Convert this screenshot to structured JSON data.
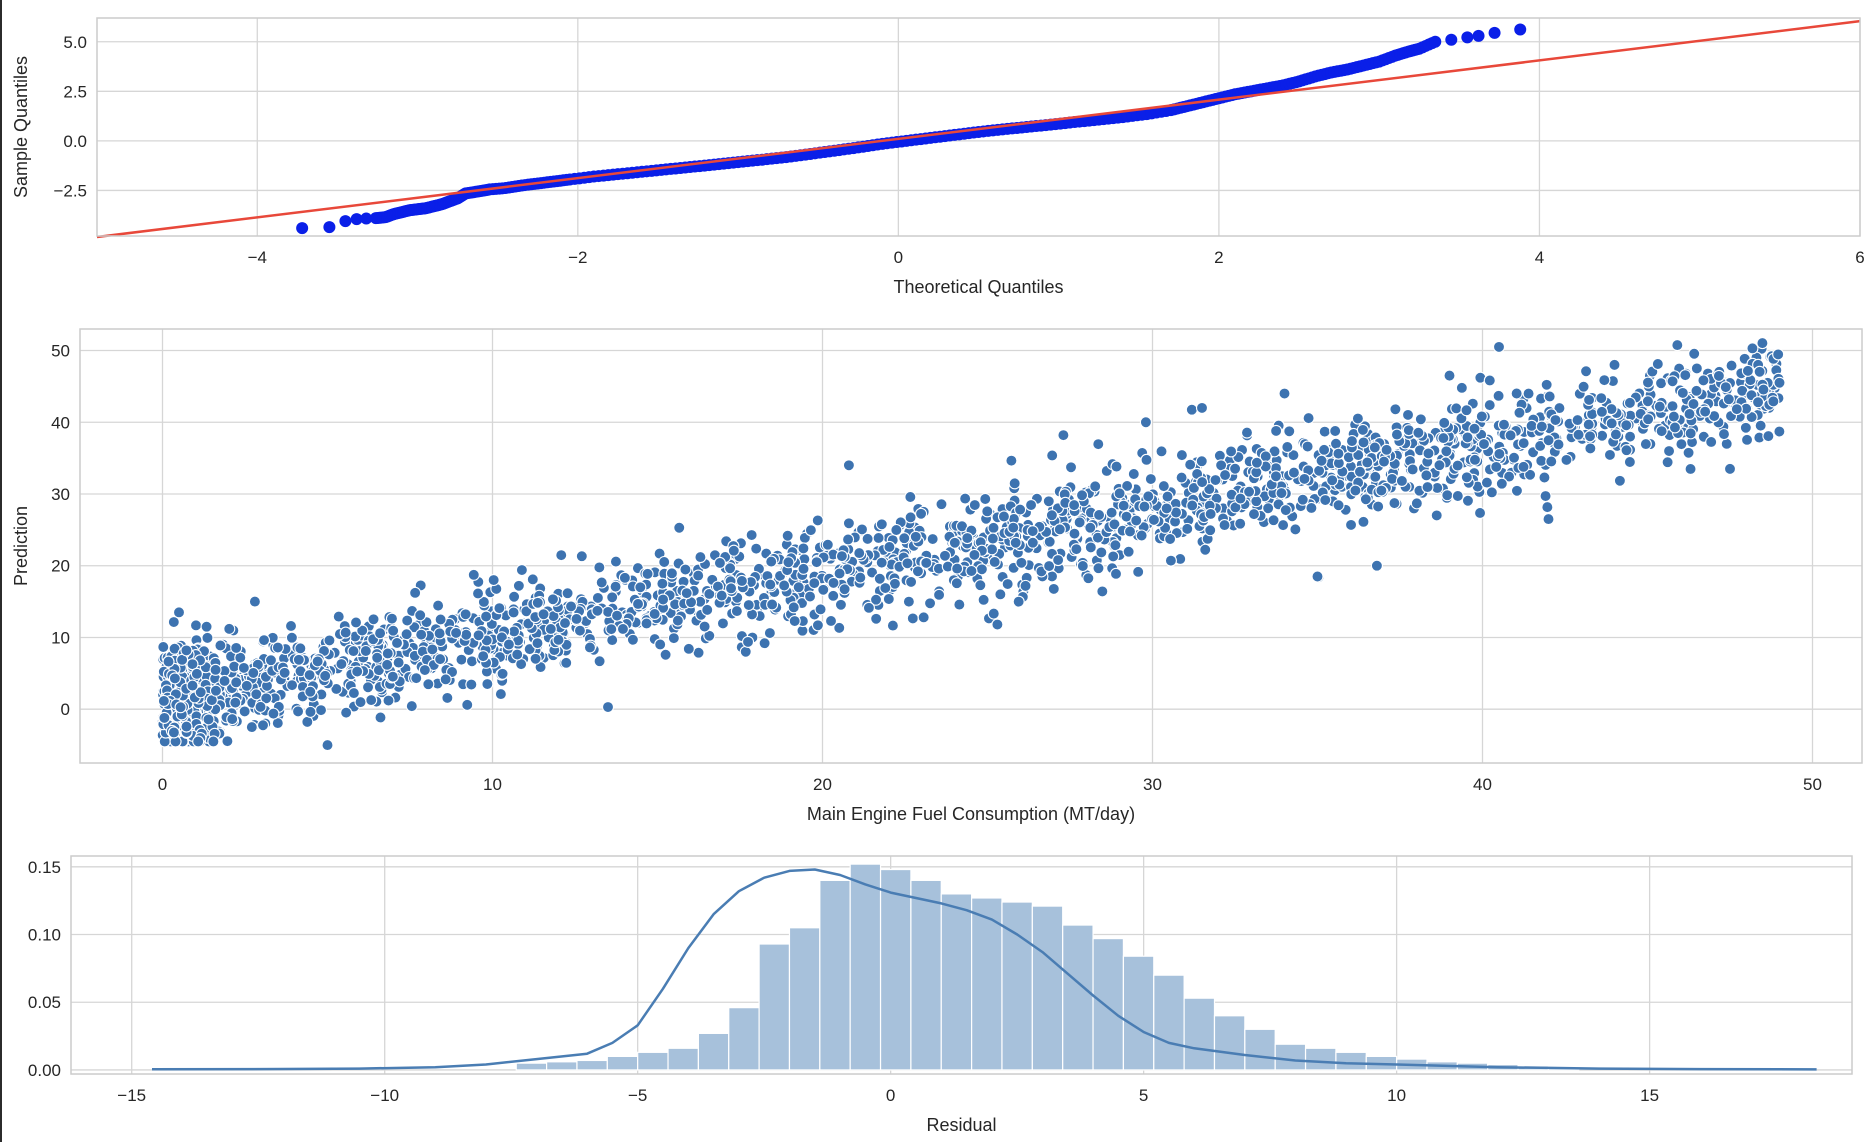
{
  "colors": {
    "qq_points": "#0a1fe8",
    "qq_line": "#e8483a",
    "scatter_points": "#3d73b0",
    "hist_bars": "#a7c1db",
    "kde_line": "#4a7db3",
    "grid": "#d6d6d6",
    "frame": "#cccccc"
  },
  "chart_data": [
    {
      "type": "scatter",
      "xlabel": "Theoretical Quantiles",
      "ylabel": "Sample Quantiles",
      "xlim": [
        -5,
        6
      ],
      "ylim": [
        -4.8,
        6.2
      ],
      "xticks": [
        -4,
        -2,
        0,
        2,
        4,
        6
      ],
      "xtick_labels": [
        "−4",
        "−2",
        "0",
        "2",
        "4",
        "6"
      ],
      "yticks": [
        5.0,
        2.5,
        0.0,
        -2.5
      ],
      "ytick_labels": [
        "5.0",
        "2.5",
        "0.0",
        "−2.5"
      ],
      "grid": true,
      "reference_line": {
        "slope": 0.99,
        "intercept": 0.1
      },
      "points": [
        [
          -3.72,
          -4.4
        ],
        [
          -3.55,
          -4.35
        ],
        [
          -3.45,
          -4.05
        ],
        [
          -3.38,
          -3.95
        ],
        [
          -3.32,
          -3.92
        ],
        [
          -3.26,
          -3.9
        ],
        [
          -3.2,
          -3.85
        ],
        [
          -3.15,
          -3.7
        ],
        [
          -3.1,
          -3.6
        ],
        [
          -3.05,
          -3.5
        ],
        [
          -3.0,
          -3.45
        ],
        [
          -2.95,
          -3.4
        ],
        [
          -2.9,
          -3.3
        ],
        [
          -2.85,
          -3.2
        ],
        [
          -2.8,
          -3.05
        ],
        [
          -2.75,
          -2.9
        ],
        [
          -2.7,
          -2.65
        ],
        [
          -2.62,
          -2.55
        ],
        [
          -2.55,
          -2.45
        ],
        [
          -2.45,
          -2.38
        ],
        [
          -2.35,
          -2.25
        ],
        [
          -2.25,
          -2.15
        ],
        [
          -2.15,
          -2.05
        ],
        [
          -2.05,
          -1.95
        ],
        [
          -1.9,
          -1.8
        ],
        [
          -1.75,
          -1.68
        ],
        [
          -1.6,
          -1.56
        ],
        [
          -1.45,
          -1.44
        ],
        [
          -1.3,
          -1.32
        ],
        [
          -1.15,
          -1.2
        ],
        [
          -1.0,
          -1.07
        ],
        [
          -0.85,
          -0.95
        ],
        [
          -0.7,
          -0.82
        ],
        [
          -0.55,
          -0.66
        ],
        [
          -0.4,
          -0.5
        ],
        [
          -0.25,
          -0.33
        ],
        [
          -0.1,
          -0.15
        ],
        [
          0.05,
          0.0
        ],
        [
          0.2,
          0.15
        ],
        [
          0.35,
          0.3
        ],
        [
          0.5,
          0.45
        ],
        [
          0.65,
          0.58
        ],
        [
          0.8,
          0.7
        ],
        [
          0.95,
          0.82
        ],
        [
          1.1,
          0.95
        ],
        [
          1.25,
          1.07
        ],
        [
          1.4,
          1.2
        ],
        [
          1.55,
          1.35
        ],
        [
          1.7,
          1.55
        ],
        [
          1.8,
          1.75
        ],
        [
          1.9,
          1.95
        ],
        [
          2.0,
          2.15
        ],
        [
          2.1,
          2.35
        ],
        [
          2.2,
          2.5
        ],
        [
          2.3,
          2.65
        ],
        [
          2.4,
          2.8
        ],
        [
          2.5,
          3.0
        ],
        [
          2.6,
          3.25
        ],
        [
          2.7,
          3.45
        ],
        [
          2.8,
          3.6
        ],
        [
          2.9,
          3.8
        ],
        [
          3.0,
          4.0
        ],
        [
          3.1,
          4.3
        ],
        [
          3.18,
          4.5
        ],
        [
          3.25,
          4.65
        ],
        [
          3.35,
          5.0
        ],
        [
          3.45,
          5.1
        ],
        [
          3.55,
          5.22
        ],
        [
          3.62,
          5.3
        ],
        [
          3.72,
          5.45
        ],
        [
          3.88,
          5.62
        ]
      ]
    },
    {
      "type": "scatter",
      "xlabel": "Main Engine Fuel Consumption (MT/day)",
      "ylabel": "Prediction",
      "xlim": [
        -2.5,
        51.5
      ],
      "ylim": [
        -7.5,
        53
      ],
      "xticks": [
        0,
        10,
        20,
        30,
        40,
        50
      ],
      "xtick_labels": [
        "0",
        "10",
        "20",
        "30",
        "40",
        "50"
      ],
      "yticks": [
        50,
        40,
        30,
        20,
        10,
        0
      ],
      "ytick_labels": [
        "50",
        "40",
        "30",
        "20",
        "10",
        "0"
      ],
      "grid": true,
      "trend": {
        "slope": 0.9,
        "intercept": 1.0,
        "noise_sd": 3.5,
        "x_range": [
          0,
          49
        ],
        "n_points": 2400
      },
      "outliers": [
        [
          0.5,
          13.5
        ],
        [
          2.8,
          15.0
        ],
        [
          5.0,
          -5.0
        ],
        [
          13.5,
          0.3
        ],
        [
          20.8,
          34.0
        ],
        [
          25.3,
          11.8
        ],
        [
          27.3,
          38.2
        ],
        [
          29.8,
          40.0
        ],
        [
          31.5,
          42.0
        ],
        [
          34.0,
          44.0
        ],
        [
          35.0,
          18.5
        ],
        [
          36.8,
          20.0
        ],
        [
          39.0,
          46.5
        ],
        [
          40.5,
          50.5
        ],
        [
          42.0,
          26.5
        ],
        [
          44.0,
          48.0
        ],
        [
          47.5,
          33.5
        ],
        [
          49.0,
          45.5
        ]
      ]
    },
    {
      "type": "histogram",
      "xlabel": "Residual",
      "ylabel": "",
      "xlim": [
        -16.2,
        19.0
      ],
      "ylim": [
        -0.003,
        0.158
      ],
      "xticks": [
        -15,
        -10,
        -5,
        0,
        5,
        10,
        15
      ],
      "xtick_labels": [
        "−15",
        "−10",
        "−5",
        "0",
        "5",
        "10",
        "15"
      ],
      "yticks": [
        0.15,
        0.1,
        0.05,
        0.0
      ],
      "ytick_labels": [
        "0.15",
        "0.10",
        "0.05",
        "0.00"
      ],
      "grid": true,
      "bin_start": -7.4,
      "bin_width": 0.6,
      "bin_heights": [
        0.005,
        0.006,
        0.007,
        0.01,
        0.013,
        0.016,
        0.027,
        0.046,
        0.093,
        0.105,
        0.14,
        0.152,
        0.148,
        0.14,
        0.13,
        0.127,
        0.124,
        0.121,
        0.107,
        0.097,
        0.084,
        0.07,
        0.053,
        0.04,
        0.03,
        0.019,
        0.016,
        0.013,
        0.01,
        0.008,
        0.006,
        0.005,
        0.004,
        0.003,
        0.002
      ],
      "kde": [
        [
          -14.6,
          0.0005
        ],
        [
          -12,
          0.0007
        ],
        [
          -10.5,
          0.001
        ],
        [
          -9,
          0.002
        ],
        [
          -8,
          0.004
        ],
        [
          -7,
          0.008
        ],
        [
          -6,
          0.012
        ],
        [
          -5.5,
          0.02
        ],
        [
          -5,
          0.033
        ],
        [
          -4.5,
          0.06
        ],
        [
          -4,
          0.09
        ],
        [
          -3.5,
          0.115
        ],
        [
          -3,
          0.132
        ],
        [
          -2.5,
          0.142
        ],
        [
          -2,
          0.147
        ],
        [
          -1.5,
          0.148
        ],
        [
          -1,
          0.144
        ],
        [
          -0.5,
          0.137
        ],
        [
          0,
          0.131
        ],
        [
          0.5,
          0.127
        ],
        [
          1,
          0.123
        ],
        [
          1.5,
          0.118
        ],
        [
          2,
          0.111
        ],
        [
          2.5,
          0.1
        ],
        [
          3,
          0.087
        ],
        [
          3.5,
          0.071
        ],
        [
          4,
          0.055
        ],
        [
          4.5,
          0.04
        ],
        [
          5,
          0.028
        ],
        [
          5.5,
          0.02
        ],
        [
          6,
          0.016
        ],
        [
          7,
          0.011
        ],
        [
          8,
          0.007
        ],
        [
          9,
          0.005
        ],
        [
          10,
          0.004
        ],
        [
          11,
          0.003
        ],
        [
          12,
          0.002
        ],
        [
          14,
          0.001
        ],
        [
          16,
          0.0006
        ],
        [
          18.3,
          0.0004
        ]
      ]
    }
  ]
}
